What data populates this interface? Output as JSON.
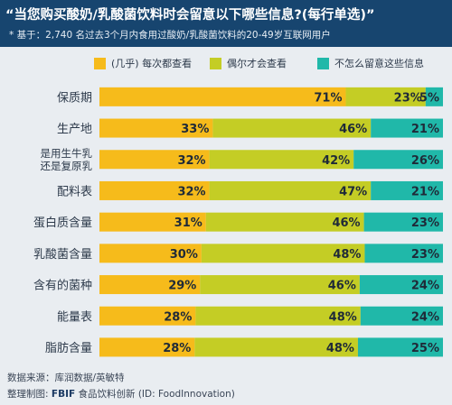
{
  "title": "“当您购买酸奶/乳酸菌饮料时会留意以下哪些信息?(每行单选)”",
  "subtitle": "* 基于：2,740 名过去3个月内食用过酸奶/乳酸菌饮料的20-49岁互联网用户",
  "footer": {
    "source": "数据来源：库润数据/英敏特",
    "made_by_prefix": "整理制图:",
    "made_by_brand": "FBIF",
    "made_by_suffix": "食品饮料创新 (ID: FoodInnovation)"
  },
  "colors": {
    "header_bg": "#17456f",
    "series1": "#f6bb1b",
    "series2": "#c4cd25",
    "series3": "#20b8a9"
  },
  "chart_data": {
    "type": "bar",
    "orientation": "horizontal",
    "stacked": true,
    "unit": "%",
    "legend_position": "top",
    "categories": [
      [
        "保质期"
      ],
      [
        "生产地"
      ],
      [
        "是用生牛乳",
        "还是复原乳"
      ],
      [
        "配料表"
      ],
      [
        "蛋白质含量"
      ],
      [
        "乳酸菌含量"
      ],
      [
        "含有的菌种"
      ],
      [
        "能量表"
      ],
      [
        "脂肪含量"
      ]
    ],
    "series": [
      {
        "name": "(几乎) 每次都查看",
        "color": "#f6bb1b",
        "values": [
          71,
          33,
          32,
          32,
          31,
          30,
          29,
          28,
          28
        ]
      },
      {
        "name": "偶尔才会查看",
        "color": "#c4cd25",
        "values": [
          23,
          46,
          42,
          47,
          46,
          48,
          46,
          48,
          48
        ]
      },
      {
        "name": "不怎么留意这些信息",
        "color": "#20b8a9",
        "values": [
          5,
          21,
          26,
          21,
          23,
          23,
          24,
          24,
          25
        ]
      }
    ]
  }
}
